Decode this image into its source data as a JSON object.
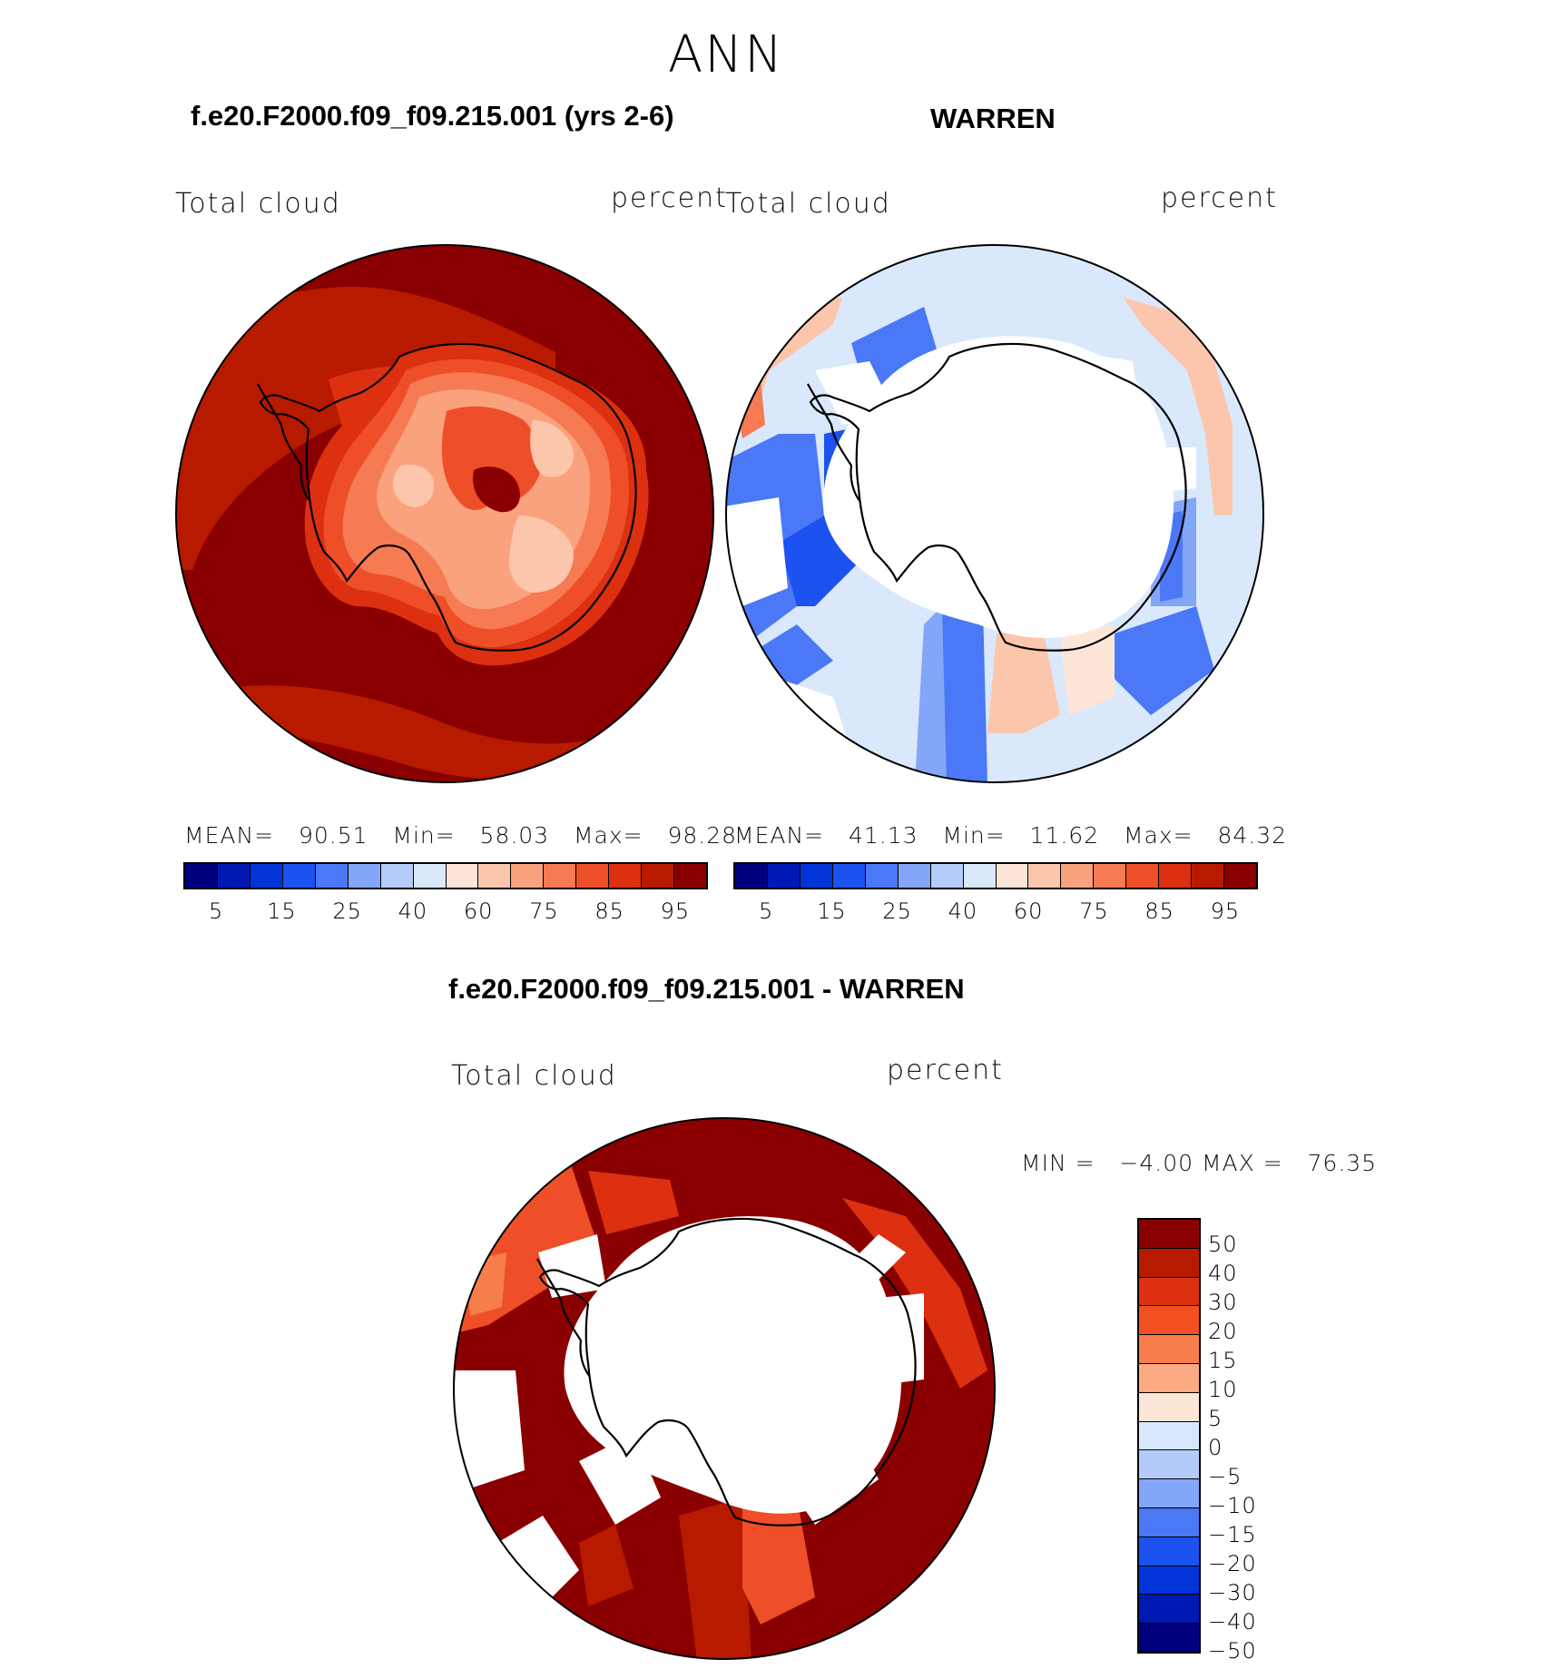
{
  "season": "ANN",
  "panels": {
    "model": {
      "title": "f.e20.F2000.f09_f09.215.001 (yrs 2-6)",
      "variable": "Total cloud",
      "units": "percent",
      "stats": {
        "mean_label": "MEAN=",
        "mean": "90.51",
        "min_label": "Min=",
        "min": "58.03",
        "max_label": "Max=",
        "max": "98.28"
      }
    },
    "obs": {
      "title": "WARREN",
      "variable": "Total cloud",
      "units": "percent",
      "stats": {
        "mean_label": "MEAN=",
        "mean": "41.13",
        "min_label": "Min=",
        "min": "11.62",
        "max_label": "Max=",
        "max": "84.32"
      }
    },
    "diff": {
      "title": "f.e20.F2000.f09_f09.215.001 - WARREN",
      "variable": "Total cloud",
      "units": "percent",
      "stats": {
        "min_label": "MIN =",
        "min": "−4.00",
        "max_label": "MAX =",
        "max": "76.35"
      }
    }
  },
  "abs_colorbar": {
    "colors": [
      "#00007f",
      "#0018b4",
      "#0034d8",
      "#1c52f0",
      "#4a78f6",
      "#84a6f8",
      "#b6ccfa",
      "#dae8fc",
      "#fde6d8",
      "#fcc6ad",
      "#faa27e",
      "#f67a52",
      "#ee4e28",
      "#dc3010",
      "#b81a00",
      "#8a0000"
    ],
    "tick_labels": [
      "5",
      "15",
      "25",
      "40",
      "60",
      "75",
      "85",
      "95"
    ]
  },
  "diff_colorbar": {
    "colors": [
      "#8a0000",
      "#b81a00",
      "#dc3010",
      "#f2501e",
      "#f77e4a",
      "#fbaa82",
      "#fde6d8",
      "#d8e8fc",
      "#b4cafa",
      "#84a6f8",
      "#4a78f6",
      "#1c52f0",
      "#0034d8",
      "#0018b4",
      "#00007f"
    ],
    "tick_labels": [
      "50",
      "40",
      "30",
      "20",
      "15",
      "10",
      "5",
      "0",
      "−5",
      "−10",
      "−15",
      "−20",
      "−30",
      "−40",
      "−50"
    ]
  }
}
